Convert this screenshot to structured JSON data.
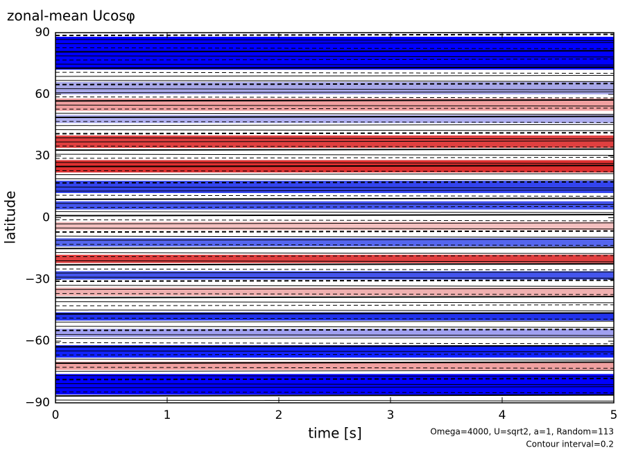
{
  "chart_data": {
    "type": "contour",
    "title": "zonal-mean Ucosφ",
    "xlabel": "time [s]",
    "ylabel": "latitude",
    "annotations": [
      "Omega=4000, U=sqrt2, a=1, Random=113",
      "Contour interval=0.2"
    ],
    "xlim": [
      0,
      5
    ],
    "xticks": [
      0,
      1,
      2,
      3,
      4,
      5
    ],
    "ylim": [
      -90,
      90
    ],
    "yticks": [
      {
        "value": -90,
        "label": "−90"
      },
      {
        "value": -60,
        "label": "−60"
      },
      {
        "value": -30,
        "label": "−30"
      },
      0,
      30,
      60,
      90
    ],
    "shading": [
      {
        "y0": 72,
        "y1": 88,
        "color": "#0000ff"
      },
      {
        "y0": 60,
        "y1": 66,
        "color": "#a8a8e8"
      },
      {
        "y0": 52,
        "y1": 58,
        "color": "#f0a0a0"
      },
      {
        "y0": 46,
        "y1": 50,
        "color": "#b0b0f0"
      },
      {
        "y0": 34,
        "y1": 40,
        "color": "#e04040"
      },
      {
        "y0": 22,
        "y1": 28,
        "color": "#e03030"
      },
      {
        "y0": 12,
        "y1": 18,
        "color": "#3344ee"
      },
      {
        "y0": 4,
        "y1": 8,
        "color": "#4455ee"
      },
      {
        "y0": -6,
        "y1": -2,
        "color": "#f4c0c0"
      },
      {
        "y0": -14,
        "y1": -10,
        "color": "#5566ee"
      },
      {
        "y0": -22,
        "y1": -18,
        "color": "#e04040"
      },
      {
        "y0": -30,
        "y1": -26,
        "color": "#4455ee"
      },
      {
        "y0": -38,
        "y1": -34,
        "color": "#f0b0b0"
      },
      {
        "y0": -50,
        "y1": -46,
        "color": "#2233ee"
      },
      {
        "y0": -58,
        "y1": -54,
        "color": "#a0a0f0"
      },
      {
        "y0": -68,
        "y1": -62,
        "color": "#1122ff"
      },
      {
        "y0": -74,
        "y1": -70,
        "color": "#f0a0a0"
      },
      {
        "y0": -86,
        "y1": -76,
        "color": "#0000ff"
      }
    ]
  }
}
